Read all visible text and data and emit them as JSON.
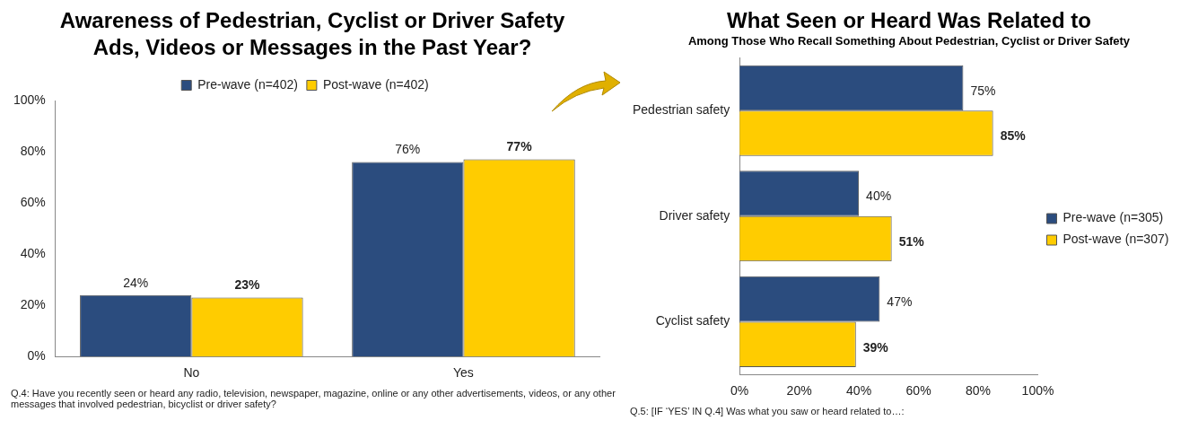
{
  "chart_data": [
    {
      "type": "bar",
      "title": "Awareness of Pedestrian, Cyclist or Driver Safety Ads, Videos or Messages in the Past Year?",
      "categories": [
        "No",
        "Yes"
      ],
      "series": [
        {
          "name": "Pre-wave (n=402)",
          "color": "#2b4c7e",
          "values": [
            24,
            76
          ],
          "value_labels": [
            "24%",
            "76%"
          ]
        },
        {
          "name": "Post-wave (n=402)",
          "color": "#ffcc00",
          "values": [
            23,
            77
          ],
          "value_labels": [
            "23%",
            "77%"
          ]
        }
      ],
      "ylim": [
        0,
        100
      ],
      "yticks": [
        {
          "value": 0,
          "label": "0%"
        },
        {
          "value": 20,
          "label": "20%"
        },
        {
          "value": 40,
          "label": "40%"
        },
        {
          "value": 60,
          "label": "60%"
        },
        {
          "value": 80,
          "label": "80%"
        },
        {
          "value": 100,
          "label": "100%"
        }
      ],
      "grid": false,
      "legend": "top",
      "annotations": [
        "Q.4: Have you recently seen or heard any radio, television, newspaper, magazine, online or any other advertisements, videos, or any other messages that involved pedestrian, bicyclist or driver safety?"
      ]
    },
    {
      "type": "bar",
      "orientation": "horizontal",
      "title": "What Seen or Heard Was Related to",
      "subtitle": "Among Those Who Recall Something About Pedestrian, Cyclist or Driver Safety",
      "categories": [
        "Pedestrian safety",
        "Driver safety",
        "Cyclist safety"
      ],
      "series": [
        {
          "name": "Pre-wave (n=305)",
          "color": "#2b4c7e",
          "values": [
            75,
            40,
            47
          ],
          "value_labels": [
            "75%",
            "40%",
            "47%"
          ]
        },
        {
          "name": "Post-wave (n=307)",
          "color": "#ffcc00",
          "values": [
            85,
            51,
            39
          ],
          "value_labels": [
            "85%",
            "51%",
            "39%"
          ]
        }
      ],
      "xlim": [
        0,
        100
      ],
      "xticks": [
        {
          "value": 0,
          "label": "0%"
        },
        {
          "value": 20,
          "label": "20%"
        },
        {
          "value": 40,
          "label": "40%"
        },
        {
          "value": 60,
          "label": "60%"
        },
        {
          "value": 80,
          "label": "80%"
        },
        {
          "value": 100,
          "label": "100%"
        }
      ],
      "grid": false,
      "legend": "right",
      "annotations": [
        "Q.5: [IF ‘YES’ IN Q.4] Was what you saw or heard related to…:"
      ]
    }
  ]
}
